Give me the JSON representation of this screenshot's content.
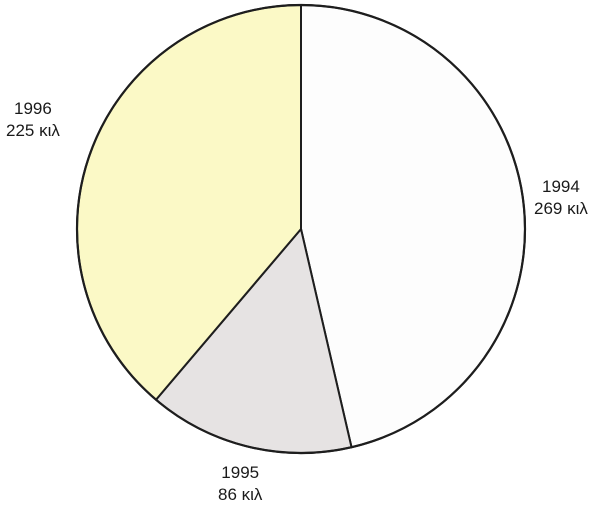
{
  "chart_data": {
    "type": "pie",
    "title": "",
    "unit": "κιλ",
    "slices": [
      {
        "label": "1994",
        "value": 269,
        "value_text": "269 κιλ",
        "color": "#fdfdfd"
      },
      {
        "label": "1995",
        "value": 86,
        "value_text": "86 κιλ",
        "color": "#e6e3e3"
      },
      {
        "label": "1996",
        "value": 225,
        "value_text": "225 κιλ",
        "color": "#fbf9c6"
      }
    ],
    "start": "12 o'clock",
    "direction": "clockwise",
    "legend": "none",
    "border_color": "#1e1e1e"
  }
}
